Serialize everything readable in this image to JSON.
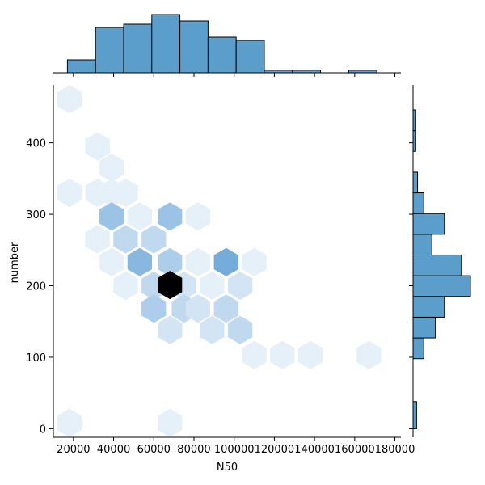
{
  "chart_data": {
    "type": "hexbin",
    "xlabel": "N50",
    "ylabel": "number",
    "xlim": [
      10000,
      183000
    ],
    "ylim": [
      -12,
      481
    ],
    "x_ticks": [
      "20000",
      "40000",
      "60000",
      "80000",
      "100000",
      "120000",
      "140000",
      "160000",
      "180000"
    ],
    "x_tick_values": [
      20000,
      40000,
      60000,
      80000,
      100000,
      120000,
      140000,
      160000,
      180000
    ],
    "y_ticks": [
      "0",
      "100",
      "200",
      "300",
      "400"
    ],
    "y_tick_values": [
      0,
      100,
      200,
      300,
      400
    ],
    "colors": {
      "bar_fill": "#5b9ecb",
      "bar_edge": "#000000",
      "hex_base": "#2a7fc8"
    },
    "hexbins": [
      {
        "x": 18000,
        "y": 461,
        "count": 1
      },
      {
        "x": 32000,
        "y": 395,
        "count": 1
      },
      {
        "x": 39000,
        "y": 365,
        "count": 1
      },
      {
        "x": 18000,
        "y": 330,
        "count": 1
      },
      {
        "x": 32000,
        "y": 330,
        "count": 1
      },
      {
        "x": 39000,
        "y": 330,
        "count": 1
      },
      {
        "x": 46000,
        "y": 330,
        "count": 1
      },
      {
        "x": 39000,
        "y": 297,
        "count": 5
      },
      {
        "x": 53000,
        "y": 297,
        "count": 1
      },
      {
        "x": 68000,
        "y": 297,
        "count": 5
      },
      {
        "x": 82000,
        "y": 297,
        "count": 1
      },
      {
        "x": 32000,
        "y": 265,
        "count": 1
      },
      {
        "x": 46000,
        "y": 265,
        "count": 3
      },
      {
        "x": 60000,
        "y": 265,
        "count": 3
      },
      {
        "x": 39000,
        "y": 233,
        "count": 1
      },
      {
        "x": 53000,
        "y": 233,
        "count": 6
      },
      {
        "x": 68000,
        "y": 233,
        "count": 4
      },
      {
        "x": 82000,
        "y": 233,
        "count": 1
      },
      {
        "x": 96000,
        "y": 233,
        "count": 7
      },
      {
        "x": 110000,
        "y": 233,
        "count": 1
      },
      {
        "x": 46000,
        "y": 200,
        "count": 1
      },
      {
        "x": 60000,
        "y": 200,
        "count": 3
      },
      {
        "x": 75000,
        "y": 200,
        "count": 2
      },
      {
        "x": 89000,
        "y": 200,
        "count": 1
      },
      {
        "x": 103000,
        "y": 200,
        "count": 2
      },
      {
        "x": 68000,
        "y": 201,
        "count": 12
      },
      {
        "x": 60000,
        "y": 168,
        "count": 4
      },
      {
        "x": 75000,
        "y": 168,
        "count": 3
      },
      {
        "x": 82000,
        "y": 168,
        "count": 2
      },
      {
        "x": 96000,
        "y": 168,
        "count": 3
      },
      {
        "x": 68000,
        "y": 138,
        "count": 2
      },
      {
        "x": 89000,
        "y": 138,
        "count": 2
      },
      {
        "x": 103000,
        "y": 138,
        "count": 3
      },
      {
        "x": 110000,
        "y": 103,
        "count": 1
      },
      {
        "x": 124000,
        "y": 103,
        "count": 1
      },
      {
        "x": 138000,
        "y": 103,
        "count": 1
      },
      {
        "x": 167000,
        "y": 103,
        "count": 1
      },
      {
        "x": 18000,
        "y": 8,
        "count": 1
      },
      {
        "x": 68000,
        "y": 8,
        "count": 1
      }
    ],
    "x_hist": {
      "bin_edges": [
        17000,
        31000,
        45000,
        59000,
        73000,
        87000,
        101000,
        115000,
        129000,
        143000,
        157000,
        171000
      ],
      "counts": [
        2,
        7,
        7.5,
        9,
        8,
        5.5,
        5,
        0.4,
        0.4,
        0,
        0.4
      ]
    },
    "y_hist": {
      "bins": [
        {
          "y0": 0,
          "y1": 38,
          "count": 0.4
        },
        {
          "y0": 98,
          "y1": 127,
          "count": 1.2
        },
        {
          "y0": 127,
          "y1": 156,
          "count": 2.5
        },
        {
          "y0": 156,
          "y1": 185,
          "count": 3.5
        },
        {
          "y0": 185,
          "y1": 214,
          "count": 6.4
        },
        {
          "y0": 214,
          "y1": 243,
          "count": 5.4
        },
        {
          "y0": 243,
          "y1": 272,
          "count": 2.1
        },
        {
          "y0": 272,
          "y1": 301,
          "count": 3.5
        },
        {
          "y0": 301,
          "y1": 330,
          "count": 1.2
        },
        {
          "y0": 330,
          "y1": 359,
          "count": 0.5
        },
        {
          "y0": 388,
          "y1": 417,
          "count": 0.3
        },
        {
          "y0": 417,
          "y1": 446,
          "count": 0.3
        }
      ]
    }
  }
}
